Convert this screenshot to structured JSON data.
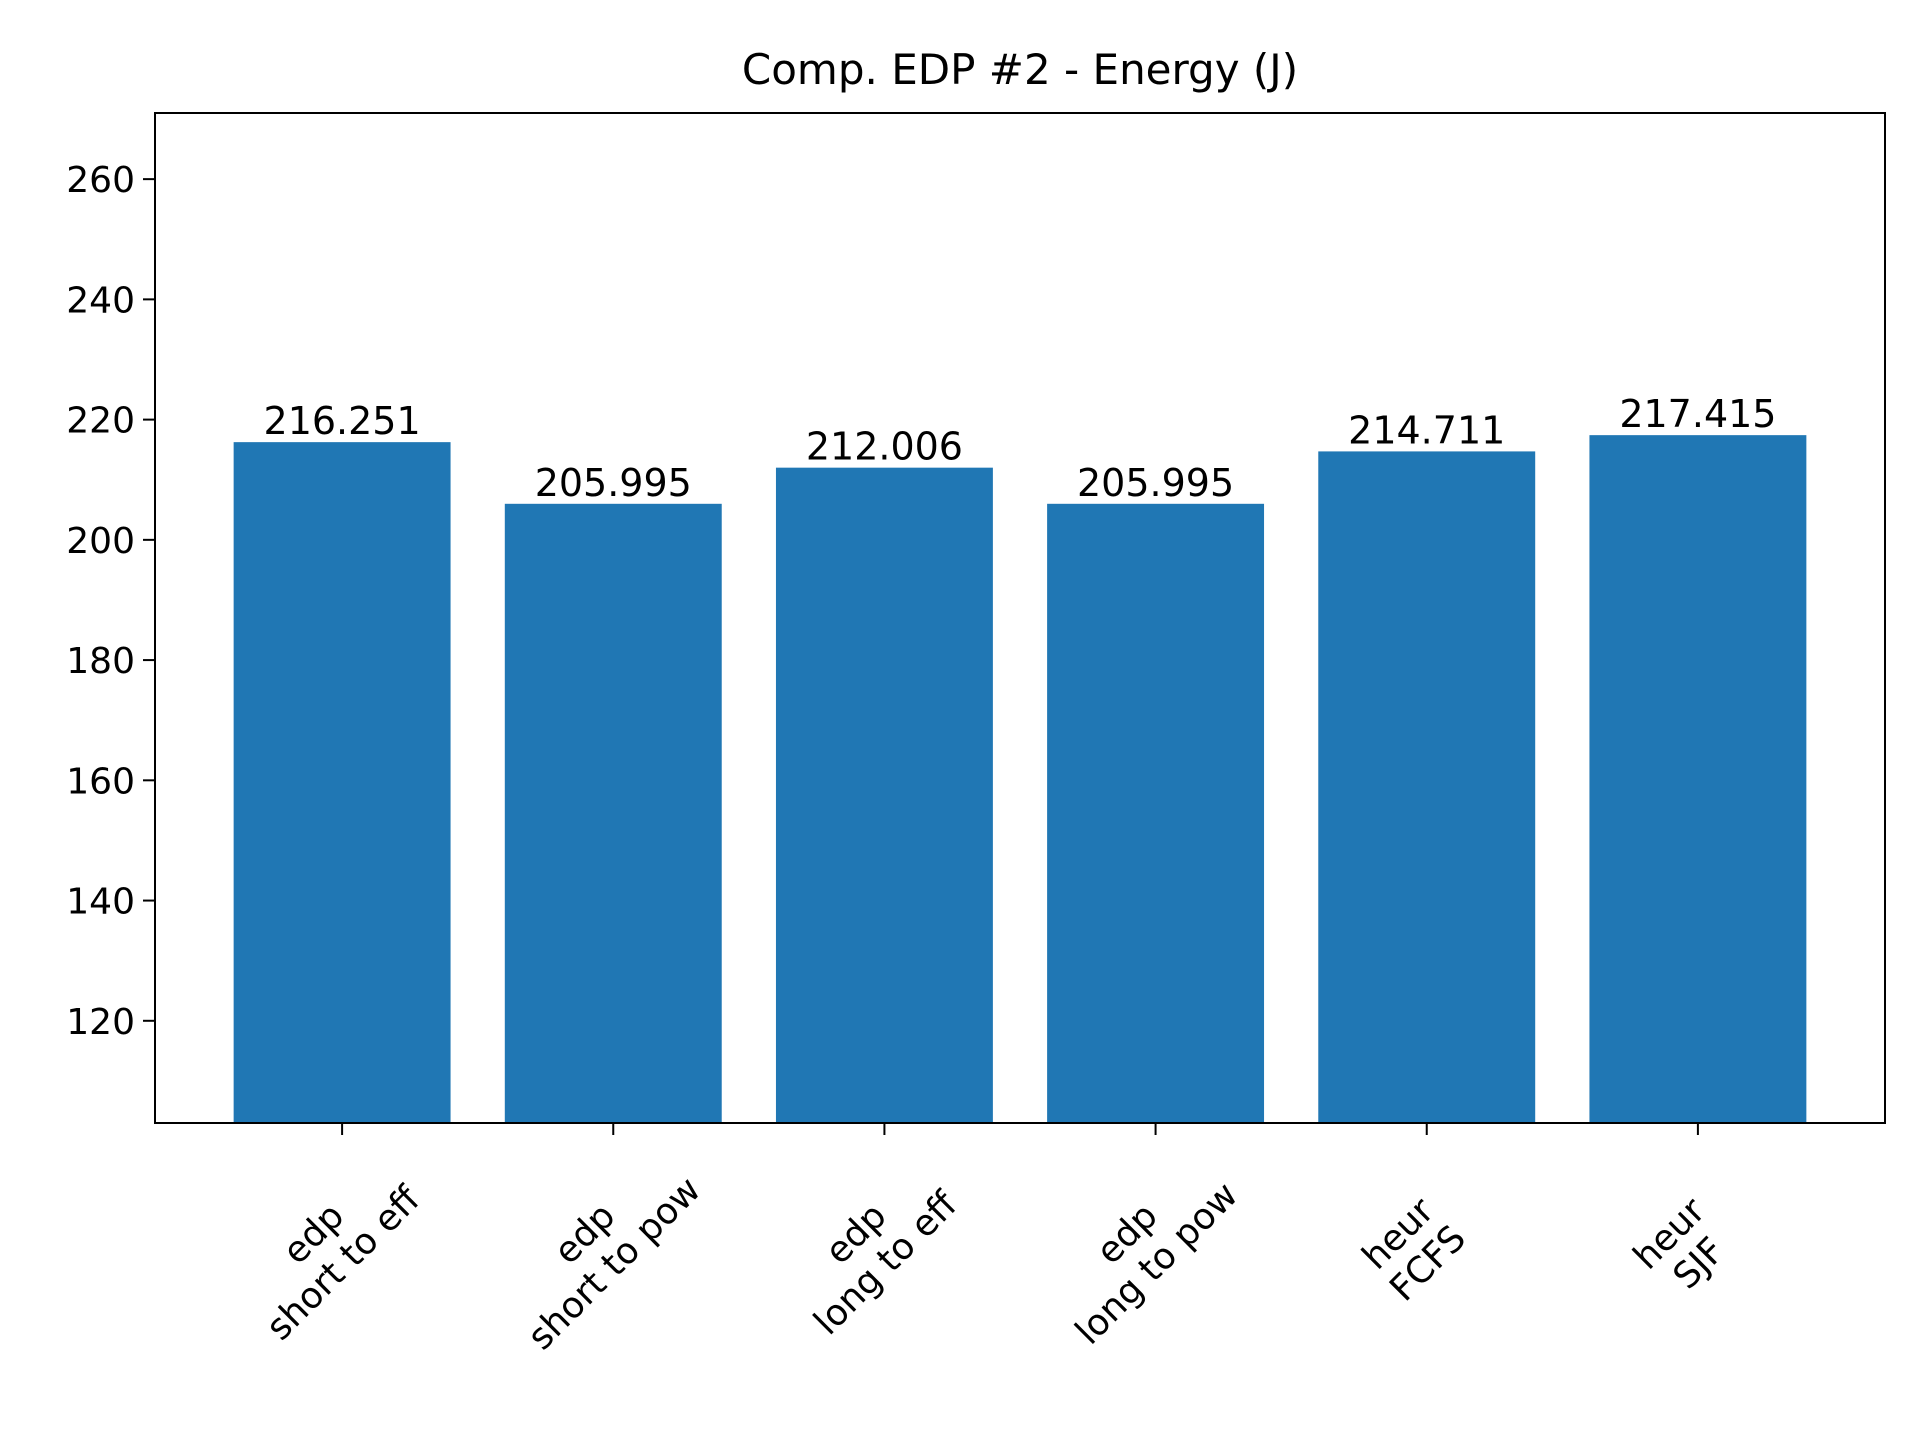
{
  "chart_data": {
    "type": "bar",
    "title": "Comp. EDP #2 - Energy (J)",
    "xlabel": "",
    "ylabel": "",
    "categories": [
      [
        "edp",
        "short to eff"
      ],
      [
        "edp",
        "short to pow"
      ],
      [
        "edp",
        "long to eff"
      ],
      [
        "edp",
        "long to pow"
      ],
      [
        "heur",
        "FCFS"
      ],
      [
        "heur",
        "SJF"
      ]
    ],
    "values": [
      216.251,
      205.995,
      212.006,
      205.995,
      214.711,
      217.415
    ],
    "value_labels": [
      "216.251",
      "205.995",
      "212.006",
      "205.995",
      "214.711",
      "217.415"
    ],
    "ylim": [
      103.0,
      271.0
    ],
    "yticks": [
      120,
      140,
      160,
      180,
      200,
      220,
      240,
      260
    ],
    "ytick_labels": [
      "120",
      "140",
      "160",
      "180",
      "200",
      "220",
      "240",
      "260"
    ],
    "grid": false,
    "bar_color": "#2077b4",
    "xtick_rotation_deg": 45
  }
}
